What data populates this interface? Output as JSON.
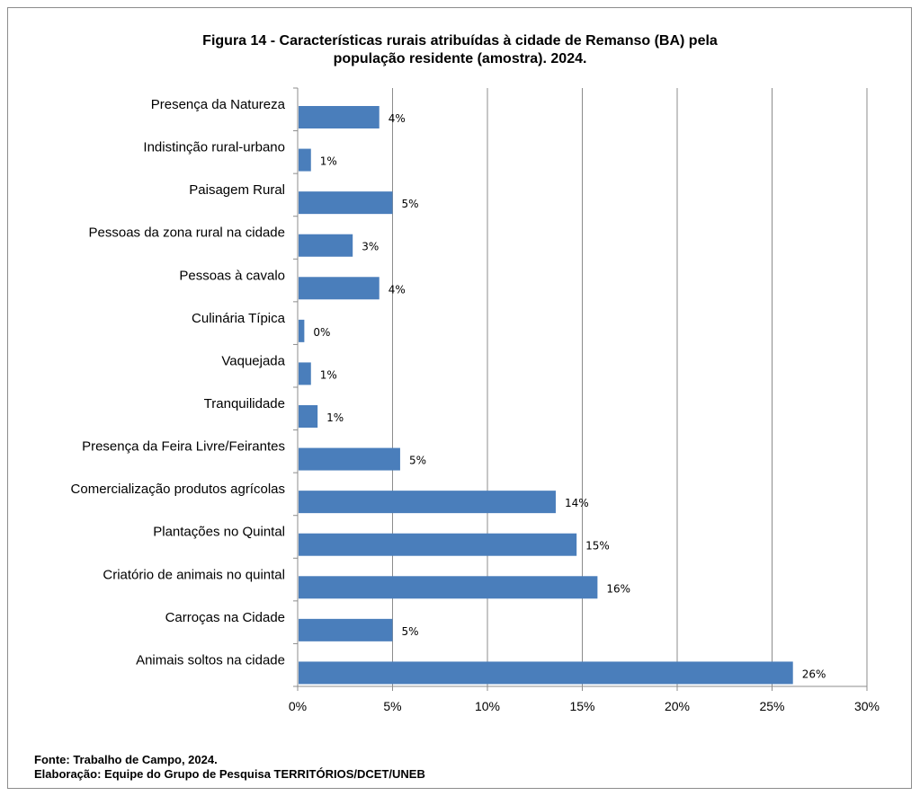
{
  "chart_data": {
    "type": "bar",
    "orientation": "horizontal",
    "title_lines": [
      "Figura 14 - Características rurais atribuídas à cidade de Remanso (BA) pela",
      "população residente (amostra). 2024."
    ],
    "categories": [
      "Presença da Natureza",
      "Indistinção rural-urbano",
      "Paisagem Rural",
      "Pessoas da zona rural na cidade",
      "Pessoas à cavalo",
      "Culinária Típica",
      "Vaquejada",
      "Tranquilidade",
      "Presença da Feira Livre/Feirantes",
      "Comercialização produtos agrícolas",
      "Plantações no Quintal",
      "Criatório de animais no quintal",
      "Carroças na Cidade",
      "Animais soltos na cidade"
    ],
    "values": [
      4.3,
      0.7,
      5.0,
      2.9,
      4.3,
      0.35,
      0.7,
      1.05,
      5.4,
      13.6,
      14.7,
      15.8,
      5.0,
      26.1
    ],
    "data_labels": [
      "4%",
      "1%",
      "5%",
      "3%",
      "4%",
      "0%",
      "1%",
      "1%",
      "5%",
      "14%",
      "15%",
      "16%",
      "5%",
      "26%"
    ],
    "xlim": [
      0,
      30
    ],
    "xticks": [
      0,
      5,
      10,
      15,
      20,
      25,
      30
    ],
    "xtick_labels": [
      "0%",
      "5%",
      "10%",
      "15%",
      "20%",
      "25%",
      "30%"
    ],
    "grid": "vertical",
    "bar_color": "#4a7ebb",
    "grid_color": "#8c8c8c",
    "legend": "none"
  },
  "footer": {
    "source": "Fonte: Trabalho de  Campo, 2024.",
    "credit": "Elaboração: Equipe do Grupo de Pesquisa TERRITÓRIOS/DCET/UNEB"
  }
}
